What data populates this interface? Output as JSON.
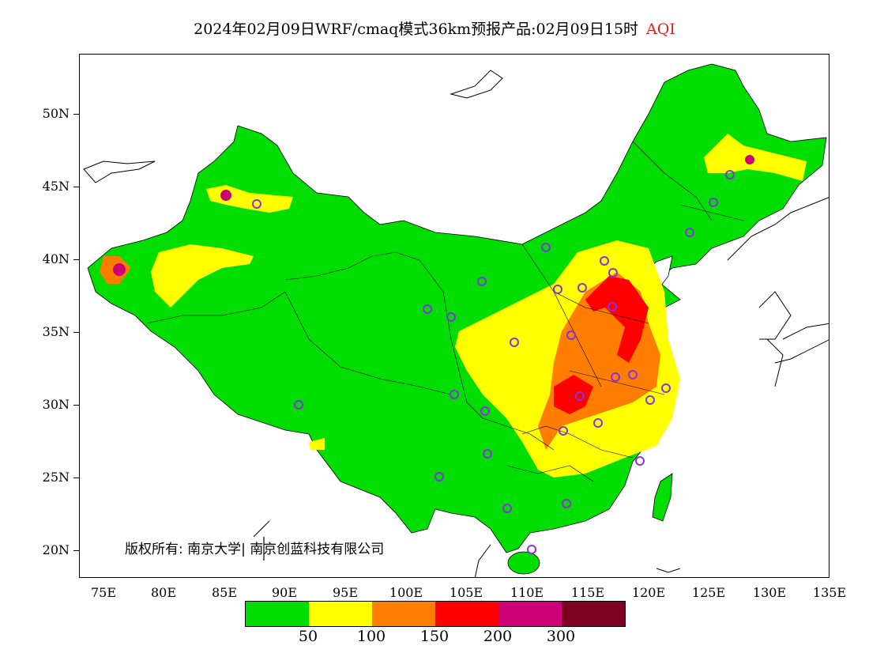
{
  "title": {
    "main": "2024年02月09日WRF/cmaq模式36km预报产品:02月09日15时",
    "variable": "AQI"
  },
  "axes": {
    "y_ticks": [
      "50N",
      "45N",
      "40N",
      "35N",
      "30N",
      "25N",
      "20N"
    ],
    "x_ticks": [
      "75E",
      "80E",
      "85E",
      "90E",
      "95E",
      "100E",
      "105E",
      "110E",
      "115E",
      "120E",
      "125E",
      "130E",
      "135E"
    ]
  },
  "copyright": "版权所有: 南京大学| 南京创蓝科技有限公司",
  "legend": {
    "colors": [
      "#00dd00",
      "#ffff00",
      "#ff7e00",
      "#ff0000",
      "#cc0077",
      "#7e0023"
    ],
    "labels": [
      "50",
      "100",
      "150",
      "200",
      "300"
    ]
  },
  "colors": {
    "ocean": "#ffffff",
    "boundary": "#000000",
    "station_marker": "#8833dd"
  }
}
